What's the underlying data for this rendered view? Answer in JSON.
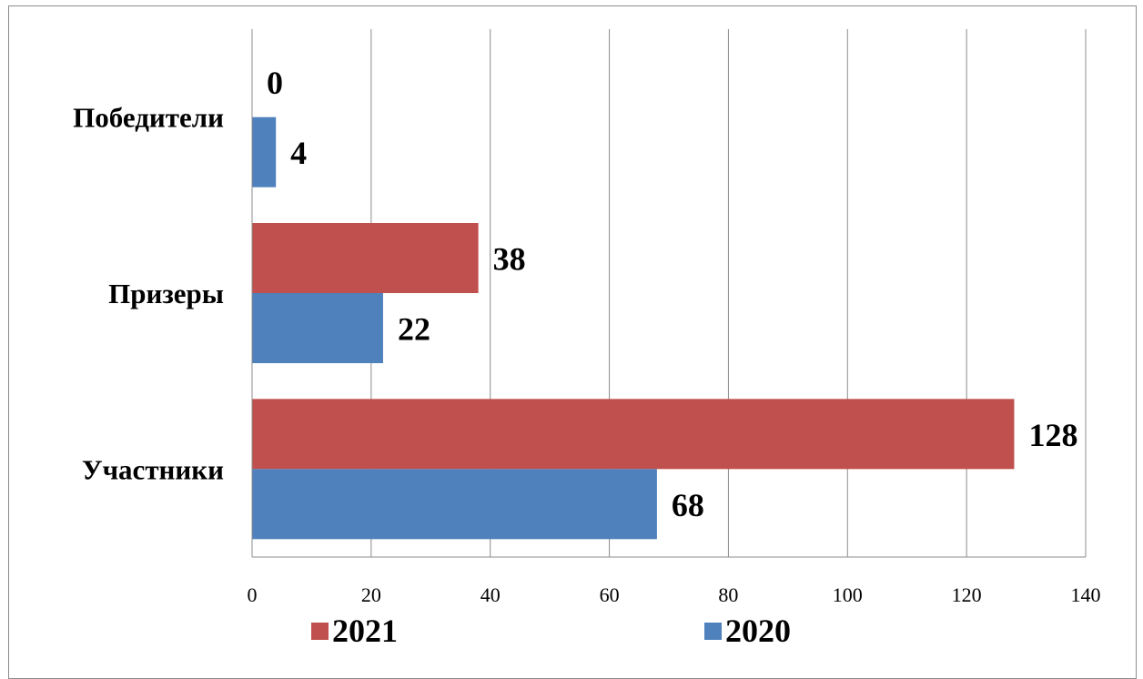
{
  "chart_data": {
    "type": "bar",
    "orientation": "horizontal",
    "categories": [
      "Участники",
      "Призеры",
      "Победители"
    ],
    "series": [
      {
        "name": "2020",
        "values": [
          68,
          22,
          4
        ],
        "color": "#4f81bd"
      },
      {
        "name": "2021",
        "values": [
          128,
          38,
          0
        ],
        "color": "#c0504d"
      }
    ],
    "x_ticks": [
      "0",
      "20",
      "40",
      "60",
      "80",
      "100",
      "120",
      "140"
    ],
    "xlim": [
      0,
      140
    ],
    "grid": true,
    "legend_position": "bottom",
    "title": "",
    "xlabel": "",
    "ylabel": ""
  },
  "legend": {
    "items": [
      {
        "label": "2021",
        "color": "#c0504d"
      },
      {
        "label": "2020",
        "color": "#4f81bd"
      }
    ]
  }
}
